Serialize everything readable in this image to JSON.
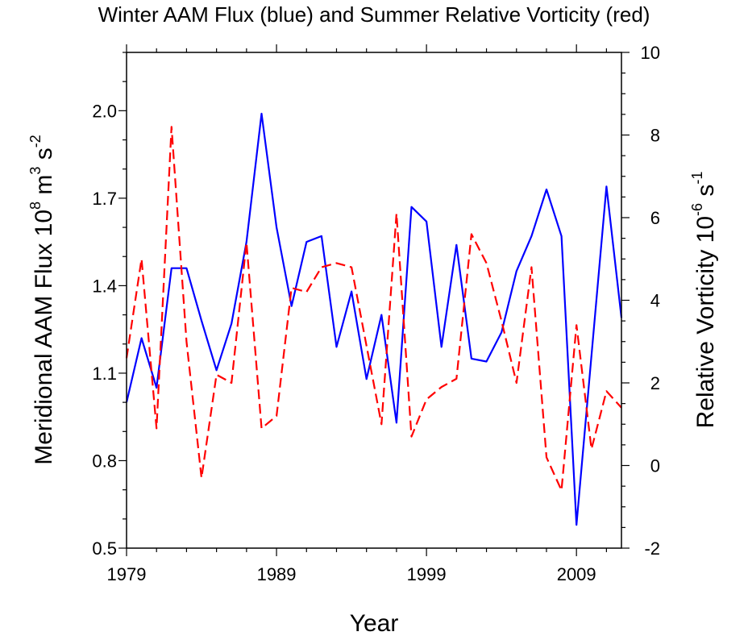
{
  "chart_data": {
    "type": "line",
    "title": "Winter AAM Flux (blue) and Summer Relative Vorticity (red)",
    "xlabel": "Year",
    "ylabel_left": {
      "base": "Meridional AAM Flux 10",
      "exp1": "8",
      "mid": " m",
      "exp2": "3",
      "mid2": " s",
      "exp3": "-2"
    },
    "ylabel_right": {
      "base": "Relative Vorticity 10",
      "exp1": "-6",
      "mid": " s",
      "exp2": "-1"
    },
    "xlim": [
      1979,
      2012
    ],
    "ylim_left": [
      0.5,
      2.2
    ],
    "ylim_right": [
      -2,
      10
    ],
    "x_ticks": [
      1979,
      1989,
      1999,
      2009
    ],
    "x_tick_labels": [
      "1979",
      "1989",
      "1999",
      "2009"
    ],
    "y_left_ticks": [
      0.5,
      0.8,
      1.1,
      1.4,
      1.7,
      2.0
    ],
    "y_left_tick_labels": [
      "0.5",
      "0.8",
      "1.1",
      "1.4",
      "1.7",
      "2.0"
    ],
    "y_right_ticks": [
      -2,
      0,
      2,
      4,
      6,
      8,
      10
    ],
    "y_right_tick_labels": [
      "-2",
      "0",
      "2",
      "4",
      "6",
      "8",
      "10"
    ],
    "grid": false,
    "series": [
      {
        "axis": "left",
        "color": "#0000ff",
        "dash": "solid",
        "x": [
          1979,
          1980,
          1981,
          1982,
          1983,
          1984,
          1985,
          1986,
          1987,
          1988,
          1989,
          1990,
          1991,
          1992,
          1993,
          1994,
          1995,
          1996,
          1997,
          1998,
          1999,
          2000,
          2001,
          2002,
          2003,
          2004,
          2005,
          2006,
          2007,
          2008,
          2009,
          2010,
          2011,
          2012
        ],
        "values": [
          1.0,
          1.22,
          1.05,
          1.46,
          1.46,
          1.28,
          1.11,
          1.27,
          1.55,
          1.99,
          1.6,
          1.33,
          1.55,
          1.57,
          1.19,
          1.38,
          1.08,
          1.3,
          0.93,
          1.67,
          1.62,
          1.19,
          1.54,
          1.15,
          1.14,
          1.24,
          1.45,
          1.57,
          1.73,
          1.57,
          0.58,
          1.16,
          1.74,
          1.29
        ]
      },
      {
        "axis": "right",
        "color": "#ff0000",
        "dash": "dashed",
        "x": [
          1979,
          1980,
          1981,
          1982,
          1983,
          1984,
          1985,
          1986,
          1987,
          1988,
          1989,
          1990,
          1991,
          1992,
          1993,
          1994,
          1995,
          1996,
          1997,
          1998,
          1999,
          2000,
          2001,
          2002,
          2003,
          2004,
          2005,
          2006,
          2007,
          2008,
          2009,
          2010,
          2011,
          2012
        ],
        "values": [
          2.6,
          5.0,
          0.9,
          8.2,
          3.0,
          -0.3,
          2.2,
          2.0,
          5.4,
          0.9,
          1.2,
          4.3,
          4.2,
          4.8,
          4.9,
          4.8,
          2.9,
          1.0,
          6.1,
          0.7,
          1.6,
          1.9,
          2.1,
          5.6,
          4.9,
          3.5,
          2.0,
          4.8,
          0.2,
          -0.6,
          3.4,
          0.4,
          1.8,
          1.4
        ]
      }
    ]
  }
}
